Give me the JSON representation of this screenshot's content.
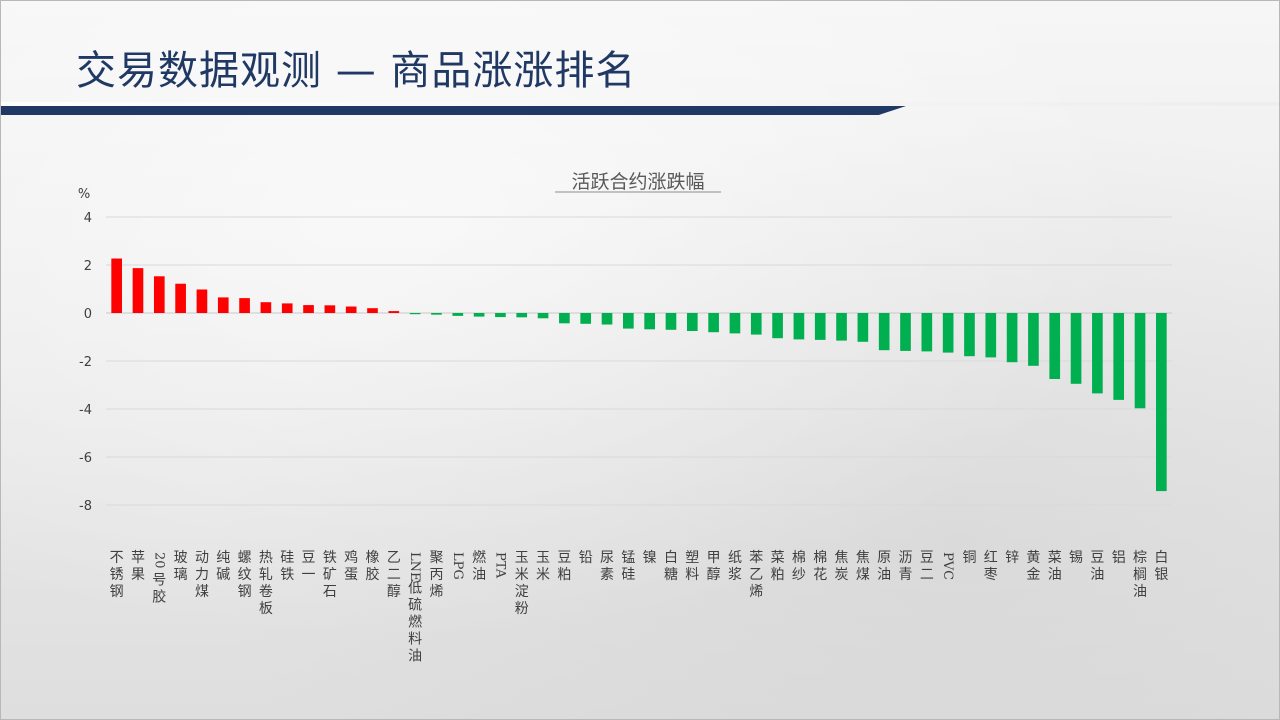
{
  "page": {
    "title": "交易数据观测 — 商品涨涨排名"
  },
  "chart_data": {
    "type": "bar",
    "title": "活跃合约涨跌幅",
    "ylabel": "%",
    "ylim": [
      -8,
      4
    ],
    "yticks": [
      4,
      2,
      0,
      -2,
      -4,
      -6,
      -8
    ],
    "grid": true,
    "colors": {
      "positive": "#ff0000",
      "negative": "#00b050"
    },
    "categories": [
      "不锈钢",
      "苹果",
      "20号胶",
      "玻璃",
      "动力煤",
      "纯碱",
      "螺纹钢",
      "热轧卷板",
      "硅铁",
      "豆一",
      "铁矿石",
      "鸡蛋",
      "橡胶",
      "乙二醇",
      "LNE低硫燃料油",
      "聚丙烯",
      "LPG",
      "燃油",
      "PTA",
      "玉米淀粉",
      "玉米",
      "豆粕",
      "铅",
      "尿素",
      "锰硅",
      "镍",
      "白糖",
      "塑料",
      "甲醇",
      "纸浆",
      "苯乙烯",
      "菜粕",
      "棉纱",
      "棉花",
      "焦炭",
      "焦煤",
      "原油",
      "沥青",
      "豆二",
      "PVC",
      "铜",
      "红枣",
      "锌",
      "黄金",
      "菜油",
      "锡",
      "豆油",
      "铝",
      "棕榈油",
      "白银"
    ],
    "values": [
      2.27,
      1.87,
      1.53,
      1.22,
      0.98,
      0.65,
      0.62,
      0.45,
      0.4,
      0.33,
      0.32,
      0.27,
      0.2,
      0.08,
      -0.05,
      -0.07,
      -0.12,
      -0.15,
      -0.17,
      -0.18,
      -0.22,
      -0.43,
      -0.45,
      -0.48,
      -0.65,
      -0.68,
      -0.7,
      -0.75,
      -0.8,
      -0.85,
      -0.9,
      -1.05,
      -1.1,
      -1.12,
      -1.15,
      -1.2,
      -1.55,
      -1.58,
      -1.6,
      -1.65,
      -1.8,
      -1.85,
      -2.05,
      -2.2,
      -2.75,
      -2.95,
      -3.35,
      -3.62,
      -3.97,
      -7.42
    ]
  }
}
